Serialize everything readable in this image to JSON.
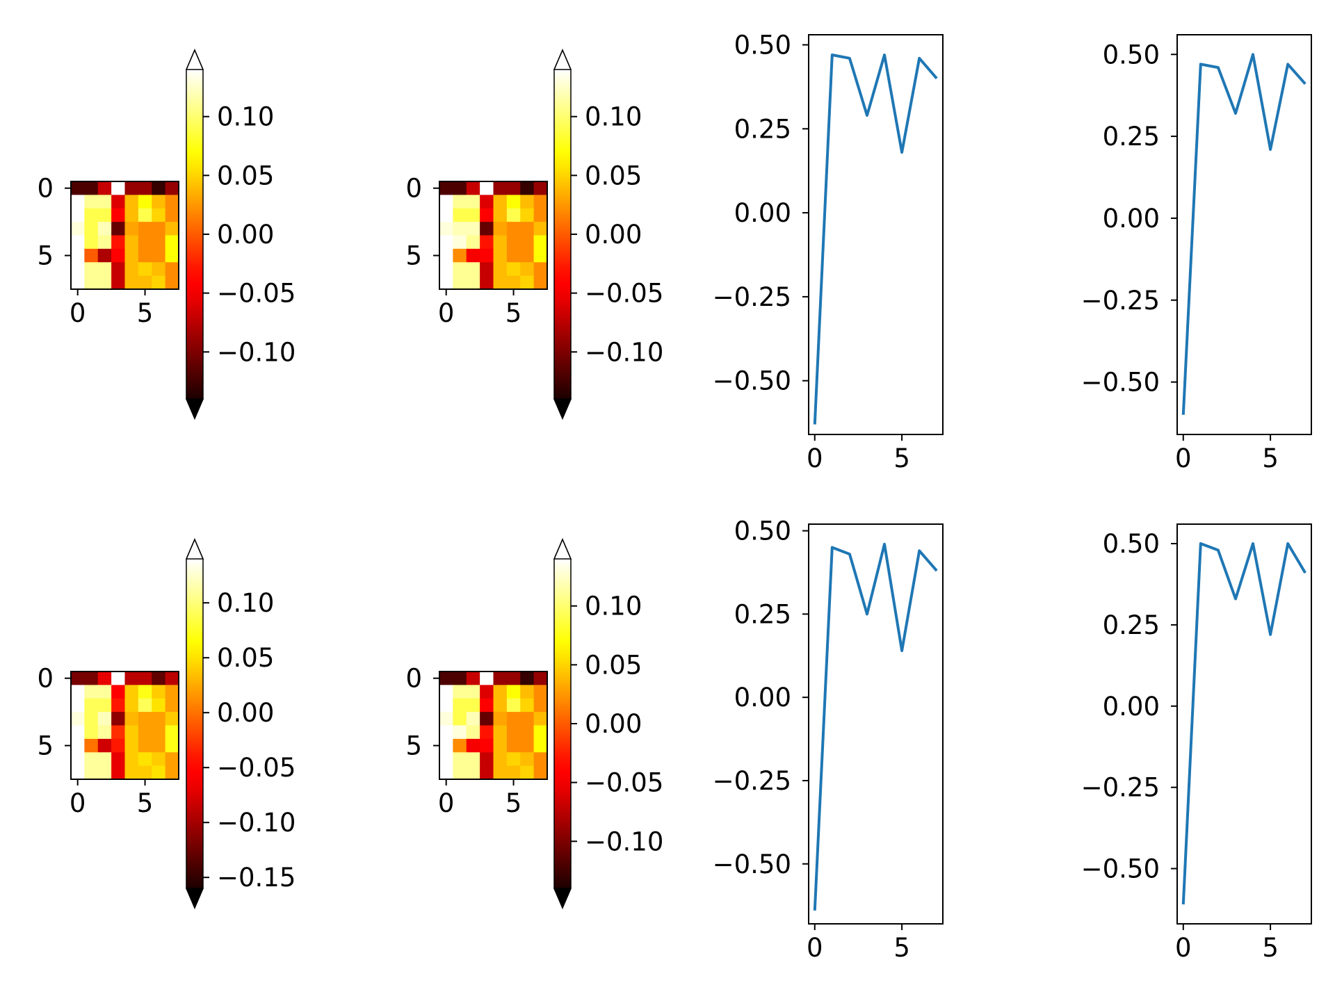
{
  "chart_data": [
    {
      "type": "heatmap",
      "title": "",
      "xticks": [
        "0",
        "5"
      ],
      "yticks": [
        "0",
        "5"
      ],
      "colormap": "hot",
      "colorbar": {
        "vmin": -0.14,
        "vmax": 0.14,
        "extend": "both",
        "ticks": [
          "0.10",
          "0.05",
          "0.00",
          "−0.05",
          "−0.10"
        ],
        "tick_values": [
          0.1,
          0.05,
          0.0,
          -0.05,
          -0.1
        ]
      },
      "z": [
        [
          -0.12,
          -0.12,
          -0.07,
          0.14,
          -0.09,
          -0.09,
          -0.13,
          -0.09
        ],
        [
          0.14,
          0.11,
          0.11,
          -0.06,
          0.04,
          0.07,
          0.04,
          0.02
        ],
        [
          0.14,
          0.09,
          0.09,
          -0.04,
          0.04,
          0.09,
          0.05,
          0.02
        ],
        [
          0.13,
          0.09,
          0.12,
          -0.11,
          0.03,
          0.02,
          0.02,
          0.04
        ],
        [
          0.14,
          0.09,
          0.11,
          -0.03,
          0.04,
          0.02,
          0.02,
          0.07
        ],
        [
          0.14,
          0.0,
          -0.08,
          -0.04,
          0.04,
          0.02,
          0.02,
          0.07
        ],
        [
          0.14,
          0.11,
          0.11,
          -0.07,
          0.04,
          0.05,
          0.04,
          0.02
        ],
        [
          0.14,
          0.11,
          0.11,
          -0.07,
          0.04,
          0.04,
          0.05,
          0.02
        ]
      ]
    },
    {
      "type": "heatmap",
      "title": "",
      "xticks": [
        "0",
        "5"
      ],
      "yticks": [
        "0",
        "5"
      ],
      "colormap": "hot",
      "colorbar": {
        "vmin": -0.14,
        "vmax": 0.14,
        "extend": "both",
        "ticks": [
          "0.10",
          "0.05",
          "0.00",
          "−0.05",
          "−0.10"
        ],
        "tick_values": [
          0.1,
          0.05,
          0.0,
          -0.05,
          -0.1
        ]
      },
      "z": [
        [
          -0.12,
          -0.12,
          -0.07,
          0.14,
          -0.09,
          -0.09,
          -0.13,
          -0.09
        ],
        [
          0.14,
          0.11,
          0.11,
          -0.06,
          0.04,
          0.07,
          0.04,
          0.02
        ],
        [
          0.14,
          0.09,
          0.09,
          -0.04,
          0.04,
          0.09,
          0.05,
          0.02
        ],
        [
          0.13,
          0.12,
          0.12,
          -0.11,
          0.03,
          0.02,
          0.02,
          0.04
        ],
        [
          0.14,
          0.13,
          0.11,
          -0.03,
          0.04,
          0.02,
          0.02,
          0.07
        ],
        [
          0.14,
          0.02,
          -0.05,
          -0.04,
          0.04,
          0.02,
          0.02,
          0.07
        ],
        [
          0.14,
          0.11,
          0.11,
          -0.07,
          0.04,
          0.05,
          0.04,
          0.02
        ],
        [
          0.14,
          0.11,
          0.11,
          -0.07,
          0.04,
          0.04,
          0.05,
          0.02
        ]
      ]
    },
    {
      "type": "line",
      "title": "",
      "x": [
        0,
        1,
        2,
        3,
        4,
        5,
        6,
        7
      ],
      "y": [
        -0.63,
        0.47,
        0.46,
        0.29,
        0.47,
        0.18,
        0.46,
        0.4
      ],
      "xlim": [
        -0.35,
        7.35
      ],
      "ylim": [
        -0.66,
        0.53
      ],
      "xticks": [
        0,
        5
      ],
      "xtick_labels": [
        "0",
        "5"
      ],
      "yticks": [
        0.5,
        0.25,
        0.0,
        -0.25,
        -0.5
      ],
      "ytick_labels": [
        "0.50",
        "0.25",
        "0.00",
        "−0.25",
        "−0.50"
      ],
      "color": "#1f77b4"
    },
    {
      "type": "line",
      "title": "",
      "x": [
        0,
        1,
        2,
        3,
        4,
        5,
        6,
        7
      ],
      "y": [
        -0.6,
        0.47,
        0.46,
        0.32,
        0.5,
        0.21,
        0.47,
        0.41
      ],
      "xlim": [
        -0.35,
        7.35
      ],
      "ylim": [
        -0.66,
        0.56
      ],
      "xticks": [
        0,
        5
      ],
      "xtick_labels": [
        "0",
        "5"
      ],
      "yticks": [
        0.5,
        0.25,
        0.0,
        -0.25,
        -0.5
      ],
      "ytick_labels": [
        "0.50",
        "0.25",
        "0.00",
        "−0.25",
        "−0.50"
      ],
      "color": "#1f77b4"
    },
    {
      "type": "heatmap",
      "title": "",
      "xticks": [
        "0",
        "5"
      ],
      "yticks": [
        "0",
        "5"
      ],
      "colormap": "hot",
      "colorbar": {
        "vmin": -0.16,
        "vmax": 0.14,
        "extend": "both",
        "ticks": [
          "0.10",
          "0.05",
          "0.00",
          "−0.05",
          "−0.10",
          "−0.15"
        ],
        "tick_values": [
          0.1,
          0.05,
          0.0,
          -0.05,
          -0.1,
          -0.15
        ]
      },
      "z": [
        [
          -0.12,
          -0.12,
          -0.07,
          0.14,
          -0.09,
          -0.09,
          -0.13,
          -0.09
        ],
        [
          0.14,
          0.11,
          0.11,
          -0.06,
          0.04,
          0.07,
          0.04,
          0.02
        ],
        [
          0.14,
          0.09,
          0.09,
          -0.04,
          0.04,
          0.09,
          0.05,
          0.02
        ],
        [
          0.13,
          0.09,
          0.12,
          -0.11,
          0.03,
          0.02,
          0.02,
          0.04
        ],
        [
          0.14,
          0.09,
          0.11,
          -0.03,
          0.04,
          0.02,
          0.02,
          0.07
        ],
        [
          0.14,
          0.0,
          -0.08,
          -0.04,
          0.04,
          0.02,
          0.02,
          0.07
        ],
        [
          0.14,
          0.11,
          0.11,
          -0.07,
          0.04,
          0.05,
          0.04,
          0.02
        ],
        [
          0.14,
          0.11,
          0.11,
          -0.07,
          0.04,
          0.04,
          0.05,
          0.02
        ]
      ]
    },
    {
      "type": "heatmap",
      "title": "",
      "xticks": [
        "0",
        "5"
      ],
      "yticks": [
        "0",
        "5"
      ],
      "colormap": "hot",
      "colorbar": {
        "vmin": -0.14,
        "vmax": 0.14,
        "extend": "both",
        "ticks": [
          "0.10",
          "0.05",
          "0.00",
          "−0.05",
          "−0.10"
        ],
        "tick_values": [
          0.1,
          0.05,
          0.0,
          -0.05,
          -0.1
        ]
      },
      "z": [
        [
          -0.12,
          -0.12,
          -0.07,
          0.14,
          -0.09,
          -0.09,
          -0.13,
          -0.09
        ],
        [
          0.14,
          0.11,
          0.11,
          -0.06,
          0.04,
          0.07,
          0.04,
          0.02
        ],
        [
          0.14,
          0.09,
          0.09,
          -0.04,
          0.04,
          0.09,
          0.05,
          0.02
        ],
        [
          0.13,
          0.09,
          0.12,
          -0.11,
          0.03,
          0.02,
          0.02,
          0.04
        ],
        [
          0.14,
          0.13,
          0.11,
          -0.03,
          0.04,
          0.02,
          0.02,
          0.07
        ],
        [
          0.14,
          0.02,
          -0.05,
          -0.04,
          0.04,
          0.02,
          0.02,
          0.07
        ],
        [
          0.14,
          0.11,
          0.11,
          -0.07,
          0.04,
          0.05,
          0.04,
          0.02
        ],
        [
          0.14,
          0.11,
          0.11,
          -0.07,
          0.04,
          0.04,
          0.05,
          0.02
        ]
      ]
    },
    {
      "type": "line",
      "title": "",
      "x": [
        0,
        1,
        2,
        3,
        4,
        5,
        6,
        7
      ],
      "y": [
        -0.64,
        0.45,
        0.43,
        0.25,
        0.46,
        0.14,
        0.44,
        0.38
      ],
      "xlim": [
        -0.35,
        7.35
      ],
      "ylim": [
        -0.68,
        0.52
      ],
      "xticks": [
        0,
        5
      ],
      "xtick_labels": [
        "0",
        "5"
      ],
      "yticks": [
        0.5,
        0.25,
        0.0,
        -0.25,
        -0.5
      ],
      "ytick_labels": [
        "0.50",
        "0.25",
        "0.00",
        "−0.25",
        "−0.50"
      ],
      "color": "#1f77b4"
    },
    {
      "type": "line",
      "title": "",
      "x": [
        0,
        1,
        2,
        3,
        4,
        5,
        6,
        7
      ],
      "y": [
        -0.61,
        0.5,
        0.48,
        0.33,
        0.5,
        0.22,
        0.5,
        0.41
      ],
      "xlim": [
        -0.35,
        7.35
      ],
      "ylim": [
        -0.67,
        0.56
      ],
      "xticks": [
        0,
        5
      ],
      "xtick_labels": [
        "0",
        "5"
      ],
      "yticks": [
        0.5,
        0.25,
        0.0,
        -0.25,
        -0.5
      ],
      "ytick_labels": [
        "0.50",
        "0.25",
        "0.00",
        "−0.25",
        "−0.50"
      ],
      "color": "#1f77b4"
    }
  ]
}
